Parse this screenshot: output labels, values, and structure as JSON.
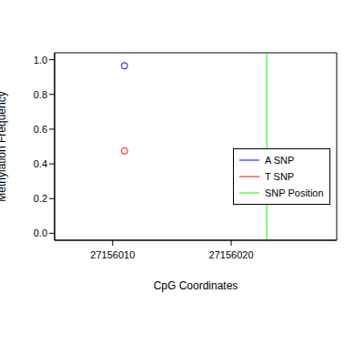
{
  "chart_data": {
    "type": "scatter",
    "x_label": "CpG Coordinates",
    "y_label": "Methylation Frequency",
    "xlim": [
      27156005.1,
      27156028.9
    ],
    "xticks": [
      27156010,
      27156020
    ],
    "ylim": [
      -0.04,
      1.04
    ],
    "yticks": [
      {
        "value": 0,
        "label": "0.0"
      },
      0.2,
      0.4,
      0.6,
      0.8,
      {
        "value": 1,
        "label": "1.0"
      }
    ],
    "legend": "right",
    "series": [
      {
        "name": "A SNP",
        "color": "#0000ff",
        "marker": "open_circle",
        "x": [
          27156011
        ],
        "values": [
          0.965
        ]
      },
      {
        "name": "T SNP",
        "color": "#ff0000",
        "marker": "open_circle",
        "x": [
          27156011
        ],
        "values": [
          0.475
        ]
      },
      {
        "name": "SNP Position",
        "color": "#00ff00",
        "type": "vline",
        "x": [
          27156023
        ]
      }
    ]
  }
}
